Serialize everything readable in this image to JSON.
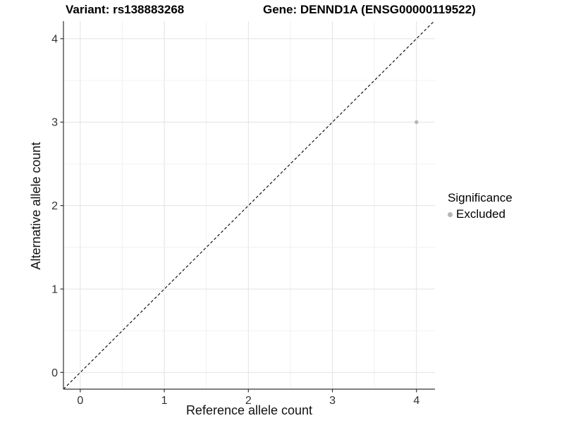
{
  "titles": {
    "variant": "Variant: rs138883268",
    "gene": "Gene: DENND1A (ENSG00000119522)"
  },
  "axes": {
    "x_label": "Reference allele count",
    "y_label": "Alternative allele count"
  },
  "legend": {
    "title": "Significance",
    "items": [
      {
        "label": "Excluded",
        "color": "#b5b5b5",
        "marker": "circle-icon"
      }
    ]
  },
  "chart_data": {
    "type": "scatter",
    "title": "Variant: rs138883268 | Gene: DENND1A (ENSG00000119522)",
    "xlabel": "Reference allele count",
    "ylabel": "Alternative allele count",
    "xlim": [
      -0.2,
      4.22
    ],
    "ylim": [
      -0.2,
      4.21
    ],
    "x_ticks": [
      0,
      1,
      2,
      3,
      4
    ],
    "y_ticks": [
      0,
      1,
      2,
      3,
      4
    ],
    "grid": true,
    "minor_grid_step": 0.5,
    "legend_position": "right",
    "series": [
      {
        "name": "Excluded",
        "color": "#b5b5b5",
        "points": [
          {
            "x": 4,
            "y": 3
          }
        ]
      }
    ],
    "reference_line": {
      "kind": "identity",
      "equation": "y = x",
      "linetype": "dashed",
      "color": "#000000"
    },
    "colors": {
      "grid_major": "#e2e2e2",
      "grid_minor": "#f0f0f0",
      "axis": "#333333",
      "tick_text": "#333333"
    }
  }
}
